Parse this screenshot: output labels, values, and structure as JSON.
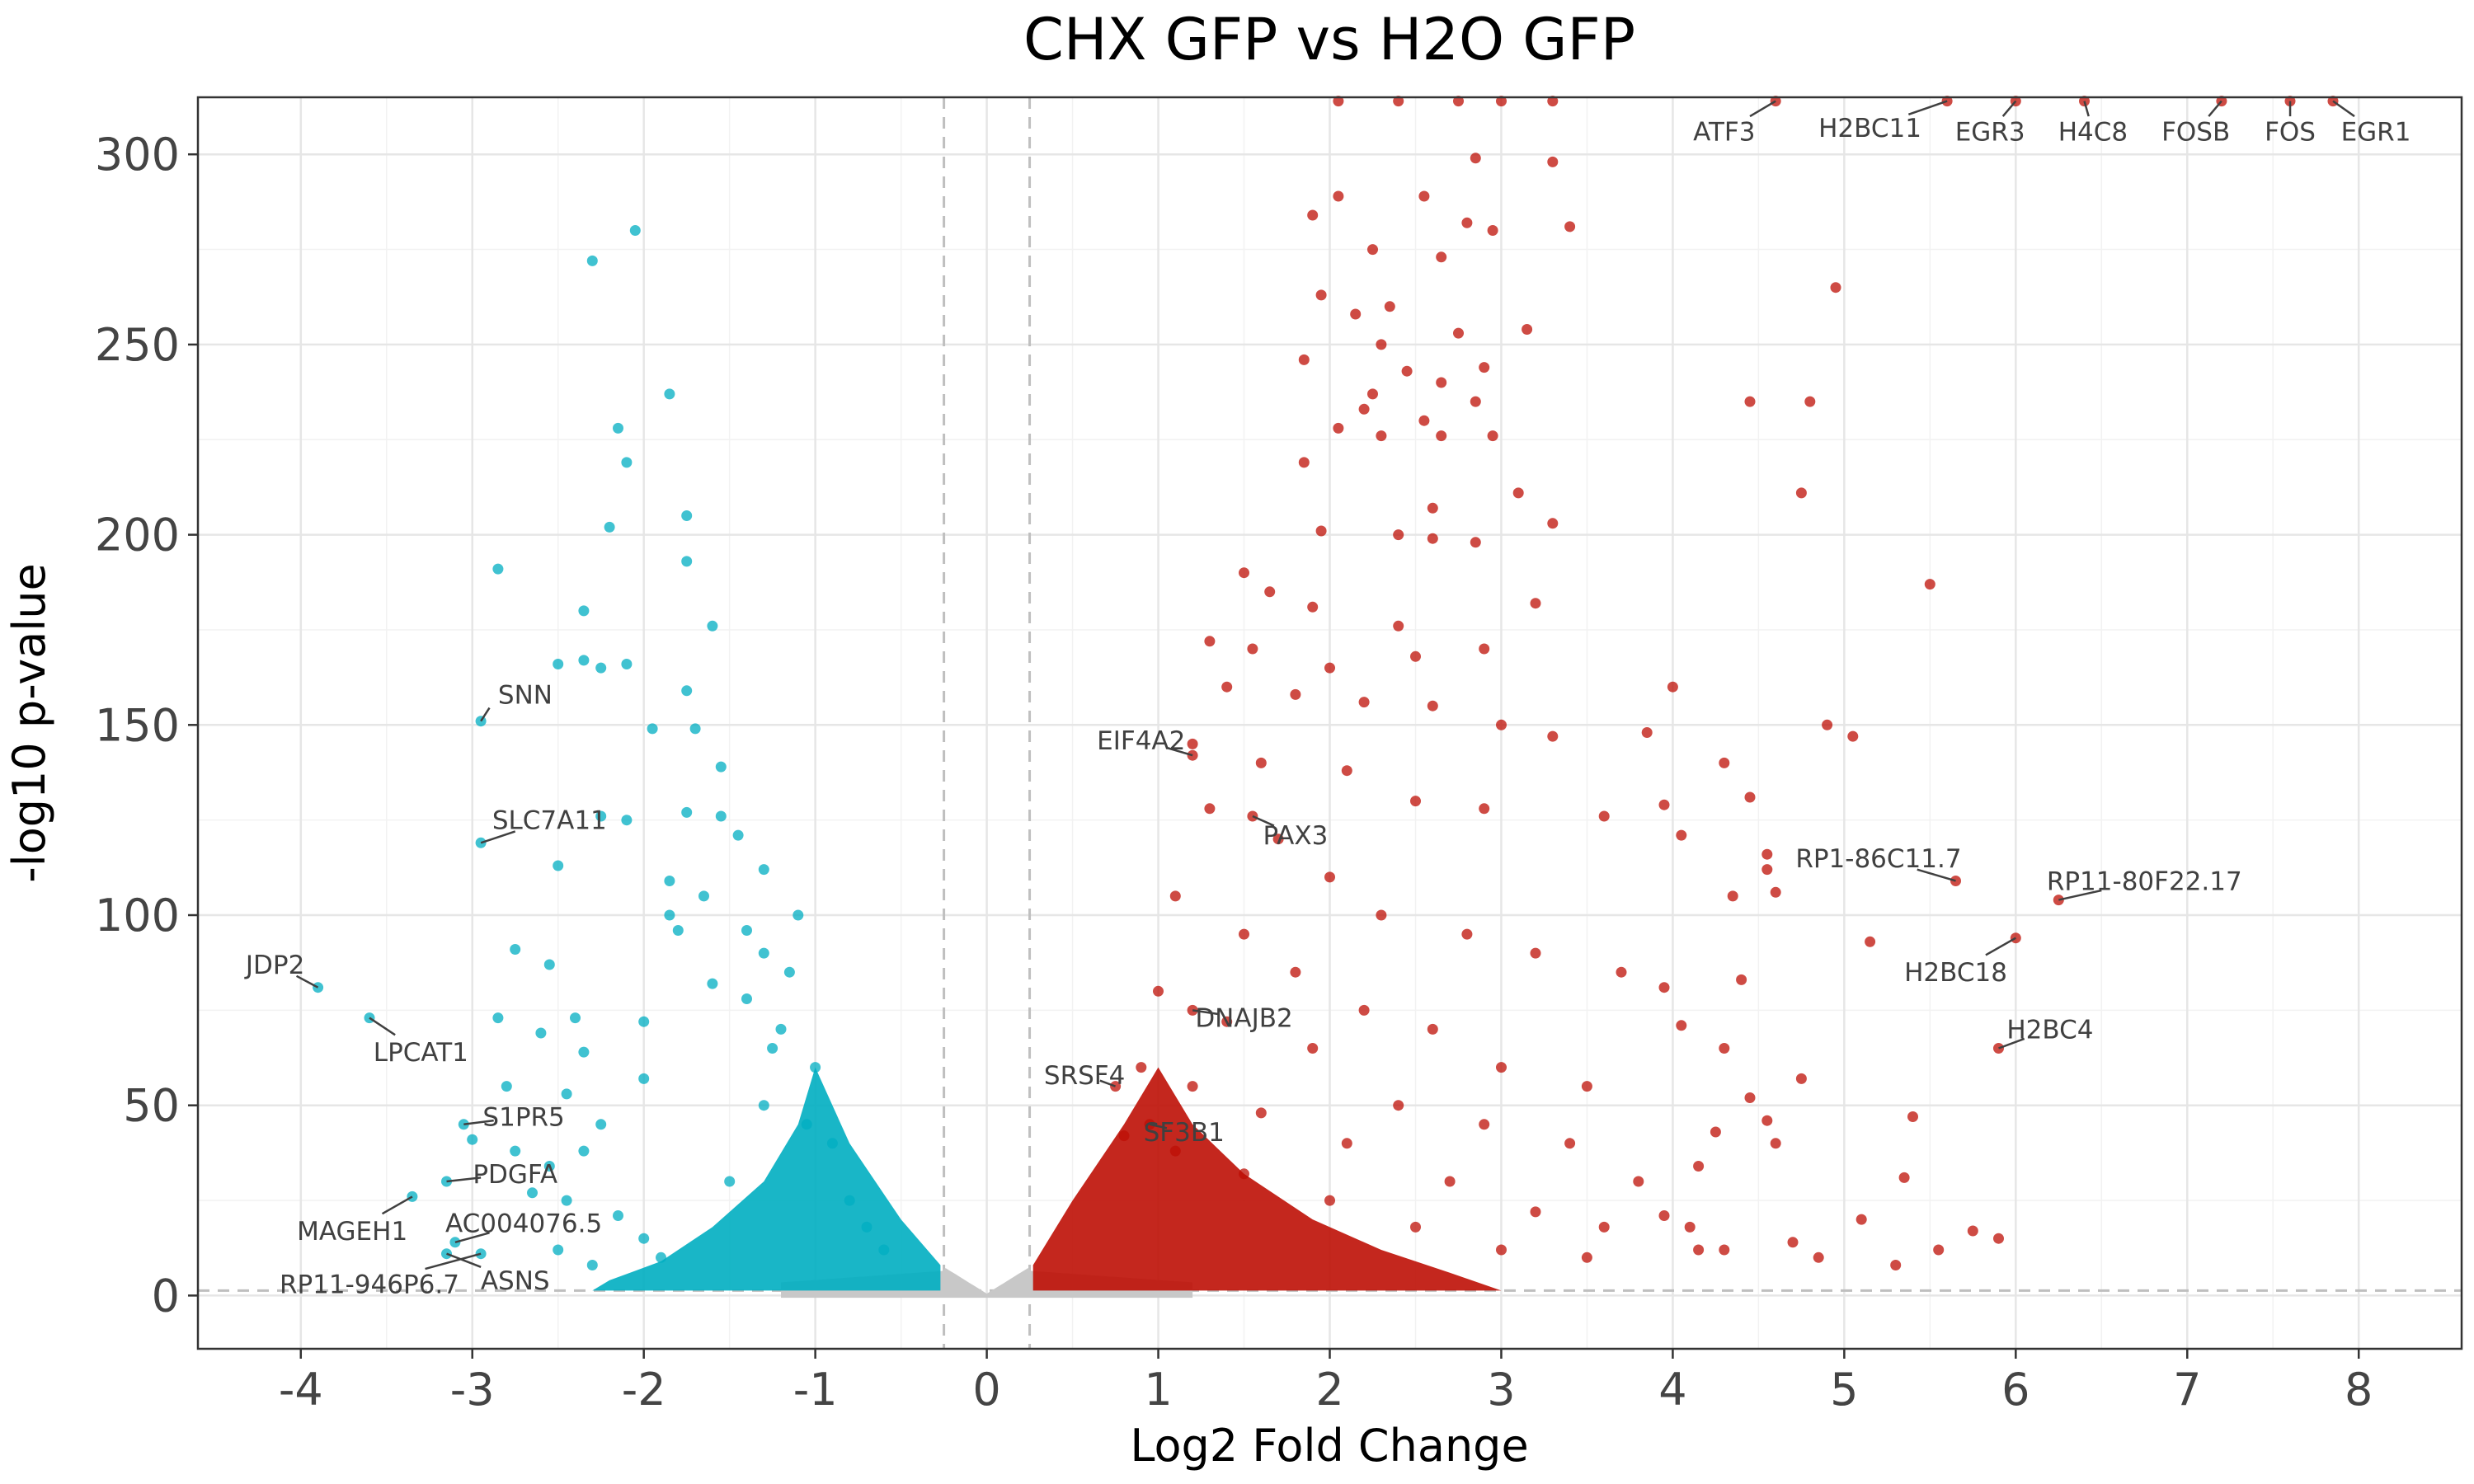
{
  "chart_data": {
    "type": "scatter",
    "title": "CHX GFP vs H2O GFP",
    "xlabel": "Log2 Fold Change",
    "ylabel": "-log10 p-value",
    "xlim": [
      -4.6,
      8.6
    ],
    "ylim": [
      -14,
      315
    ],
    "x_ticks": [
      -4,
      -3,
      -2,
      -1,
      0,
      1,
      2,
      3,
      4,
      5,
      6,
      7,
      8
    ],
    "x_tick_labels": [
      "-4",
      "-3",
      "-2",
      "-1",
      "0",
      "1",
      "2",
      "3",
      "4",
      "5",
      "6",
      "7",
      "8"
    ],
    "y_ticks": [
      0,
      50,
      100,
      150,
      200,
      250,
      300
    ],
    "y_tick_labels": [
      "0",
      "50",
      "100",
      "150",
      "200",
      "250",
      "300"
    ],
    "grid": true,
    "legend": "none",
    "thresholds": {
      "log2fc": [
        -0.25,
        0.25
      ],
      "neglog10p": 1.3
    },
    "colors": {
      "down": "#00AEC1",
      "up": "#BE0F05",
      "ns": "#C8C8C8",
      "threshold": "#BFBFBF",
      "leader": "#404040"
    },
    "series": [
      {
        "group": "down",
        "points": [
          [
            -2.05,
            280
          ],
          [
            -2.3,
            272
          ],
          [
            -1.85,
            237
          ],
          [
            -2.15,
            228
          ],
          [
            -2.1,
            219
          ],
          [
            -1.75,
            205
          ],
          [
            -2.2,
            202
          ],
          [
            -2.85,
            191
          ],
          [
            -1.75,
            193
          ],
          [
            -2.35,
            180
          ],
          [
            -1.6,
            176
          ],
          [
            -2.35,
            167
          ],
          [
            -2.1,
            166
          ],
          [
            -2.5,
            166
          ],
          [
            -2.25,
            165
          ],
          [
            -1.75,
            159
          ],
          [
            -1.7,
            149
          ],
          [
            -1.95,
            149
          ],
          [
            -1.55,
            139
          ],
          [
            -2.25,
            126
          ],
          [
            -2.1,
            125
          ],
          [
            -1.75,
            127
          ],
          [
            -1.55,
            126
          ],
          [
            -1.45,
            121
          ],
          [
            -2.5,
            113
          ],
          [
            -1.3,
            112
          ],
          [
            -1.85,
            109
          ],
          [
            -1.65,
            105
          ],
          [
            -1.1,
            100
          ],
          [
            -1.85,
            100
          ],
          [
            -2.75,
            91
          ],
          [
            -2.55,
            87
          ],
          [
            -1.4,
            96
          ],
          [
            -1.8,
            96
          ],
          [
            -1.3,
            90
          ],
          [
            -1.15,
            85
          ],
          [
            -2.4,
            73
          ],
          [
            -2.85,
            73
          ],
          [
            -2.0,
            72
          ],
          [
            -2.6,
            69
          ],
          [
            -2.35,
            64
          ],
          [
            -2.8,
            55
          ],
          [
            -2.45,
            53
          ],
          [
            -2.0,
            57
          ],
          [
            -2.25,
            45
          ],
          [
            -2.35,
            38
          ],
          [
            -2.75,
            38
          ],
          [
            -2.55,
            34
          ],
          [
            -2.65,
            27
          ],
          [
            -2.45,
            25
          ],
          [
            -2.15,
            21
          ],
          [
            -2.5,
            12
          ],
          [
            -2.3,
            8
          ],
          [
            -2.0,
            15
          ],
          [
            -1.9,
            10
          ],
          [
            -1.5,
            30
          ],
          [
            -1.3,
            50
          ],
          [
            -1.2,
            70
          ],
          [
            -1.0,
            60
          ],
          [
            -0.9,
            40
          ],
          [
            -0.8,
            25
          ],
          [
            -0.6,
            12
          ],
          [
            -1.4,
            78
          ],
          [
            -1.6,
            82
          ],
          [
            -1.25,
            65
          ],
          [
            -1.05,
            45
          ],
          [
            -0.7,
            18
          ],
          [
            -2.95,
            151
          ],
          [
            -2.95,
            119
          ],
          [
            -3.9,
            81
          ],
          [
            -3.6,
            73
          ],
          [
            -3.05,
            45
          ],
          [
            -3.0,
            41
          ],
          [
            -3.15,
            30
          ],
          [
            -3.35,
            26
          ],
          [
            -3.1,
            14
          ],
          [
            -3.15,
            11
          ],
          [
            -2.95,
            11
          ]
        ]
      },
      {
        "group": "up",
        "points": [
          [
            2.05,
            314
          ],
          [
            2.4,
            314
          ],
          [
            2.75,
            314
          ],
          [
            3.0,
            314
          ],
          [
            3.3,
            314
          ],
          [
            4.6,
            314
          ],
          [
            5.6,
            314
          ],
          [
            6.0,
            314
          ],
          [
            6.4,
            314
          ],
          [
            7.2,
            314
          ],
          [
            7.6,
            314
          ],
          [
            7.85,
            314
          ],
          [
            2.85,
            299
          ],
          [
            3.3,
            298
          ],
          [
            2.05,
            289
          ],
          [
            2.55,
            289
          ],
          [
            1.9,
            284
          ],
          [
            2.95,
            280
          ],
          [
            3.4,
            281
          ],
          [
            2.25,
            275
          ],
          [
            2.8,
            282
          ],
          [
            2.65,
            273
          ],
          [
            1.95,
            263
          ],
          [
            2.35,
            260
          ],
          [
            2.15,
            258
          ],
          [
            2.3,
            250
          ],
          [
            2.75,
            253
          ],
          [
            3.15,
            254
          ],
          [
            1.85,
            246
          ],
          [
            2.45,
            243
          ],
          [
            2.65,
            240
          ],
          [
            2.9,
            244
          ],
          [
            2.25,
            237
          ],
          [
            2.2,
            233
          ],
          [
            2.55,
            230
          ],
          [
            2.85,
            235
          ],
          [
            2.05,
            228
          ],
          [
            2.3,
            226
          ],
          [
            2.65,
            226
          ],
          [
            2.95,
            226
          ],
          [
            1.85,
            219
          ],
          [
            3.1,
            211
          ],
          [
            2.6,
            207
          ],
          [
            3.3,
            203
          ],
          [
            1.95,
            201
          ],
          [
            2.4,
            200
          ],
          [
            2.6,
            199
          ],
          [
            2.85,
            198
          ],
          [
            1.5,
            190
          ],
          [
            1.65,
            185
          ],
          [
            1.9,
            181
          ],
          [
            2.4,
            176
          ],
          [
            3.2,
            182
          ],
          [
            1.3,
            172
          ],
          [
            1.55,
            170
          ],
          [
            2.0,
            165
          ],
          [
            2.5,
            168
          ],
          [
            2.9,
            170
          ],
          [
            1.4,
            160
          ],
          [
            1.8,
            158
          ],
          [
            2.2,
            156
          ],
          [
            2.6,
            155
          ],
          [
            3.0,
            150
          ],
          [
            3.3,
            147
          ],
          [
            1.2,
            145
          ],
          [
            1.6,
            140
          ],
          [
            2.1,
            138
          ],
          [
            2.5,
            130
          ],
          [
            2.9,
            128
          ],
          [
            3.6,
            126
          ],
          [
            1.3,
            128
          ],
          [
            1.7,
            120
          ],
          [
            2.0,
            110
          ],
          [
            2.3,
            100
          ],
          [
            2.8,
            95
          ],
          [
            3.2,
            90
          ],
          [
            3.7,
            85
          ],
          [
            1.1,
            105
          ],
          [
            1.5,
            95
          ],
          [
            1.8,
            85
          ],
          [
            2.2,
            75
          ],
          [
            2.6,
            70
          ],
          [
            3.0,
            60
          ],
          [
            3.5,
            55
          ],
          [
            1.0,
            80
          ],
          [
            1.4,
            72
          ],
          [
            1.9,
            65
          ],
          [
            2.4,
            50
          ],
          [
            2.9,
            45
          ],
          [
            3.4,
            40
          ],
          [
            3.8,
            30
          ],
          [
            0.9,
            60
          ],
          [
            1.2,
            55
          ],
          [
            1.6,
            48
          ],
          [
            2.1,
            40
          ],
          [
            2.7,
            30
          ],
          [
            3.2,
            22
          ],
          [
            3.6,
            18
          ],
          [
            0.8,
            42
          ],
          [
            1.1,
            38
          ],
          [
            1.5,
            32
          ],
          [
            2.0,
            25
          ],
          [
            2.5,
            18
          ],
          [
            3.0,
            12
          ],
          [
            3.5,
            10
          ],
          [
            4.0,
            160
          ],
          [
            3.85,
            148
          ],
          [
            3.95,
            129
          ],
          [
            4.3,
            140
          ],
          [
            4.45,
            131
          ],
          [
            4.55,
            116
          ],
          [
            4.05,
            121
          ],
          [
            4.55,
            112
          ],
          [
            4.35,
            105
          ],
          [
            4.6,
            106
          ],
          [
            4.4,
            83
          ],
          [
            3.95,
            81
          ],
          [
            4.05,
            71
          ],
          [
            4.3,
            65
          ],
          [
            4.75,
            57
          ],
          [
            4.45,
            52
          ],
          [
            4.55,
            46
          ],
          [
            4.6,
            40
          ],
          [
            4.25,
            43
          ],
          [
            4.15,
            34
          ],
          [
            3.95,
            21
          ],
          [
            4.1,
            18
          ],
          [
            4.15,
            12
          ],
          [
            4.3,
            12
          ],
          [
            4.45,
            235
          ],
          [
            4.8,
            235
          ],
          [
            4.75,
            211
          ],
          [
            4.95,
            265
          ],
          [
            5.5,
            187
          ],
          [
            4.9,
            150
          ],
          [
            5.05,
            147
          ],
          [
            5.15,
            93
          ],
          [
            5.4,
            47
          ],
          [
            5.35,
            31
          ],
          [
            5.65,
            109
          ],
          [
            6.0,
            94
          ],
          [
            6.25,
            104
          ],
          [
            5.9,
            65
          ],
          [
            5.75,
            17
          ],
          [
            5.9,
            15
          ],
          [
            5.1,
            20
          ],
          [
            5.55,
            12
          ],
          [
            4.85,
            10
          ],
          [
            5.3,
            8
          ],
          [
            4.7,
            14
          ],
          [
            1.2,
            142
          ],
          [
            1.55,
            126
          ],
          [
            1.2,
            75
          ],
          [
            0.95,
            45
          ],
          [
            0.75,
            55
          ]
        ]
      }
    ],
    "labels": [
      {
        "gene": "SNN",
        "x": -2.95,
        "y": 151,
        "lx": -2.85,
        "ly": 158,
        "anchor": "start"
      },
      {
        "gene": "SLC7A11",
        "x": -2.95,
        "y": 119,
        "lx": -2.55,
        "ly": 125,
        "anchor": "middle"
      },
      {
        "gene": "JDP2",
        "x": -3.9,
        "y": 81,
        "lx": -4.15,
        "ly": 87,
        "anchor": "middle"
      },
      {
        "gene": "LPCAT1",
        "x": -3.6,
        "y": 73,
        "lx": -3.3,
        "ly": 64,
        "anchor": "middle"
      },
      {
        "gene": "S1PR5",
        "x": -3.05,
        "y": 45,
        "lx": -2.7,
        "ly": 47,
        "anchor": "middle"
      },
      {
        "gene": "PDGFA",
        "x": -3.15,
        "y": 30,
        "lx": -2.75,
        "ly": 32,
        "anchor": "middle"
      },
      {
        "gene": "MAGEH1",
        "x": -3.35,
        "y": 26,
        "lx": -3.7,
        "ly": 17,
        "anchor": "middle"
      },
      {
        "gene": "AC004076.5",
        "x": -3.1,
        "y": 14,
        "lx": -2.7,
        "ly": 19,
        "anchor": "middle"
      },
      {
        "gene": "ASNS",
        "x": -3.15,
        "y": 11,
        "lx": -2.75,
        "ly": 4,
        "anchor": "middle"
      },
      {
        "gene": "RP11-946P6.7",
        "x": -2.95,
        "y": 11,
        "lx": -3.6,
        "ly": 3,
        "anchor": "middle"
      },
      {
        "gene": "EIF4A2",
        "x": 1.2,
        "y": 142,
        "lx": 0.9,
        "ly": 146,
        "anchor": "middle"
      },
      {
        "gene": "PAX3",
        "x": 1.55,
        "y": 126,
        "lx": 1.8,
        "ly": 121,
        "anchor": "middle"
      },
      {
        "gene": "DNAJB2",
        "x": 1.2,
        "y": 75,
        "lx": 1.5,
        "ly": 73,
        "anchor": "middle"
      },
      {
        "gene": "SRSF4",
        "x": 0.75,
        "y": 55,
        "lx": 0.57,
        "ly": 58,
        "anchor": "middle"
      },
      {
        "gene": "SF3B1",
        "x": 0.95,
        "y": 45,
        "lx": 1.15,
        "ly": 43,
        "anchor": "middle"
      },
      {
        "gene": "RP1-86C11.7",
        "x": 5.65,
        "y": 109,
        "lx": 5.2,
        "ly": 115,
        "anchor": "middle"
      },
      {
        "gene": "RP11-80F22.17",
        "x": 6.25,
        "y": 104,
        "lx": 6.75,
        "ly": 109,
        "anchor": "middle"
      },
      {
        "gene": "H2BC18",
        "x": 6.0,
        "y": 94,
        "lx": 5.65,
        "ly": 85,
        "anchor": "middle"
      },
      {
        "gene": "H2BC4",
        "x": 5.9,
        "y": 65,
        "lx": 6.2,
        "ly": 70,
        "anchor": "middle"
      },
      {
        "gene": "ATF3",
        "x": 4.6,
        "y": 314,
        "lx": 4.3,
        "ly": 306,
        "anchor": "middle"
      },
      {
        "gene": "H2BC11",
        "x": 5.6,
        "y": 314,
        "lx": 5.15,
        "ly": 307,
        "anchor": "middle"
      },
      {
        "gene": "EGR3",
        "x": 6.0,
        "y": 314,
        "lx": 5.85,
        "ly": 306,
        "anchor": "middle"
      },
      {
        "gene": "H4C8",
        "x": 6.4,
        "y": 314,
        "lx": 6.45,
        "ly": 306,
        "anchor": "middle"
      },
      {
        "gene": "FOSB",
        "x": 7.2,
        "y": 314,
        "lx": 7.05,
        "ly": 306,
        "anchor": "middle"
      },
      {
        "gene": "FOS",
        "x": 7.6,
        "y": 314,
        "lx": 7.6,
        "ly": 306,
        "anchor": "middle"
      },
      {
        "gene": "EGR1",
        "x": 7.85,
        "y": 314,
        "lx": 8.1,
        "ly": 306,
        "anchor": "middle"
      }
    ]
  }
}
